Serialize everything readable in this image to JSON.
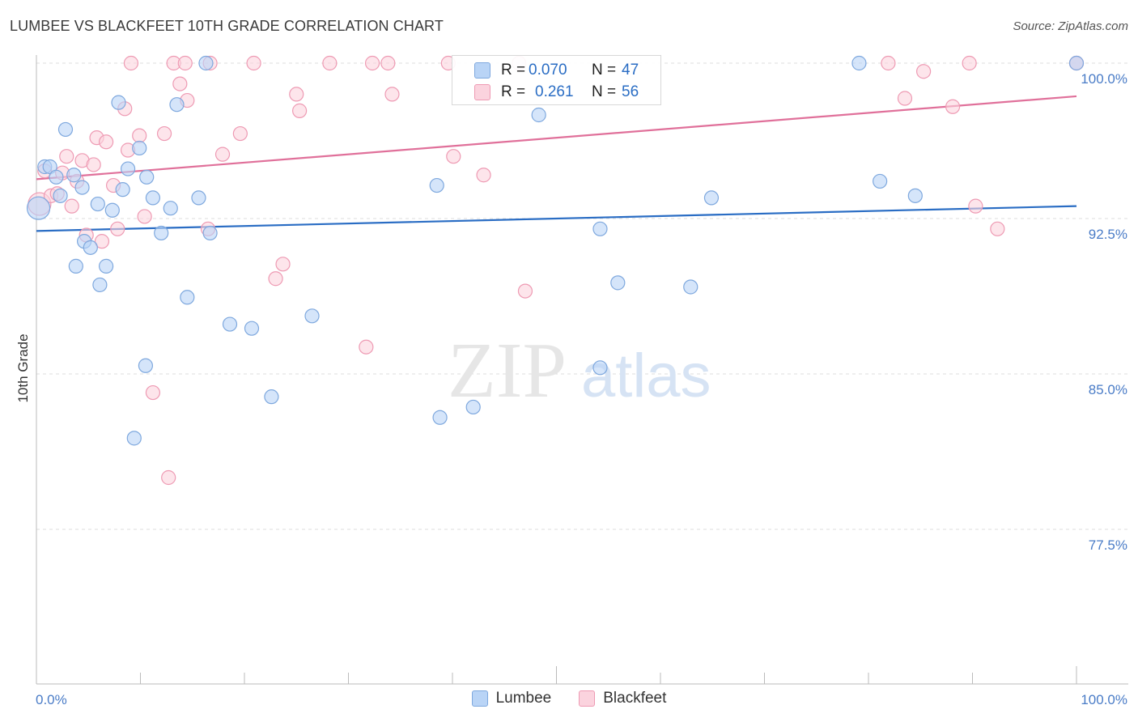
{
  "title": "LUMBEE VS BLACKFEET 10TH GRADE CORRELATION CHART",
  "source": "Source: ZipAtlas.com",
  "watermark": {
    "zip": "ZIP",
    "atlas": "atlas"
  },
  "colors": {
    "lumbee_fill": "#b9d4f6",
    "lumbee_stroke": "#7ea8de",
    "lumbee_line": "#2a6dc4",
    "blackfeet_fill": "#fbd3de",
    "blackfeet_stroke": "#ee9ab3",
    "blackfeet_line": "#e0709a",
    "tick_text": "#4a7cc7"
  },
  "stats": [
    {
      "r_label": "R = ",
      "r_value": "0.070",
      "n_label": "N = ",
      "n_value": "47"
    },
    {
      "r_label": "R = ",
      "r_value": "0.261",
      "n_label": "N = ",
      "n_value": "56"
    }
  ],
  "legend": [
    "Lumbee",
    "Blackfeet"
  ],
  "chart_data": {
    "type": "scatter",
    "title": "LUMBEE VS BLACKFEET 10TH GRADE CORRELATION CHART",
    "xlabel": "",
    "ylabel": "10th Grade",
    "xlim": [
      0,
      100
    ],
    "ylim": [
      71.0,
      101.4
    ],
    "x_tick_labels": [
      "0.0%",
      "100.0%"
    ],
    "y_ticks": [
      100.0,
      92.5,
      85.0,
      77.5
    ],
    "y_tick_labels": [
      "100.0%",
      "92.5%",
      "85.0%",
      "77.5%"
    ],
    "grid": true,
    "legend_position": "bottom",
    "series": [
      {
        "name": "Lumbee",
        "trend": {
          "x": [
            0,
            100
          ],
          "y": [
            91.9,
            93.1
          ]
        },
        "points": [
          {
            "x": 0.2,
            "y": 93.0,
            "big": true
          },
          {
            "x": 0.8,
            "y": 95.0
          },
          {
            "x": 1.3,
            "y": 95.0
          },
          {
            "x": 1.9,
            "y": 94.5
          },
          {
            "x": 2.3,
            "y": 93.6
          },
          {
            "x": 2.8,
            "y": 96.8
          },
          {
            "x": 3.6,
            "y": 94.6
          },
          {
            "x": 3.8,
            "y": 90.2
          },
          {
            "x": 4.4,
            "y": 94.0
          },
          {
            "x": 4.6,
            "y": 91.4
          },
          {
            "x": 5.2,
            "y": 91.1
          },
          {
            "x": 5.9,
            "y": 93.2
          },
          {
            "x": 6.1,
            "y": 89.3
          },
          {
            "x": 6.7,
            "y": 90.2
          },
          {
            "x": 7.3,
            "y": 92.9
          },
          {
            "x": 7.9,
            "y": 98.1
          },
          {
            "x": 8.3,
            "y": 93.9
          },
          {
            "x": 8.8,
            "y": 94.9
          },
          {
            "x": 9.4,
            "y": 81.9
          },
          {
            "x": 9.9,
            "y": 95.9
          },
          {
            "x": 10.5,
            "y": 85.4
          },
          {
            "x": 10.6,
            "y": 94.5
          },
          {
            "x": 11.2,
            "y": 93.5
          },
          {
            "x": 12.0,
            "y": 91.8
          },
          {
            "x": 12.9,
            "y": 93.0
          },
          {
            "x": 13.5,
            "y": 98.0
          },
          {
            "x": 14.5,
            "y": 88.7
          },
          {
            "x": 15.6,
            "y": 93.5
          },
          {
            "x": 16.3,
            "y": 100.0
          },
          {
            "x": 16.7,
            "y": 91.8
          },
          {
            "x": 18.6,
            "y": 87.4
          },
          {
            "x": 20.7,
            "y": 87.2
          },
          {
            "x": 22.6,
            "y": 83.9
          },
          {
            "x": 26.5,
            "y": 87.8
          },
          {
            "x": 38.5,
            "y": 94.1
          },
          {
            "x": 38.8,
            "y": 82.9
          },
          {
            "x": 42.0,
            "y": 83.4
          },
          {
            "x": 48.3,
            "y": 97.5
          },
          {
            "x": 54.2,
            "y": 92.0
          },
          {
            "x": 54.2,
            "y": 85.3
          },
          {
            "x": 55.9,
            "y": 89.4
          },
          {
            "x": 62.9,
            "y": 89.2
          },
          {
            "x": 64.9,
            "y": 93.5
          },
          {
            "x": 79.1,
            "y": 100.0
          },
          {
            "x": 81.1,
            "y": 94.3
          },
          {
            "x": 84.5,
            "y": 93.6
          },
          {
            "x": 100.0,
            "y": 100.0
          }
        ]
      },
      {
        "name": "Blackfeet",
        "trend": {
          "x": [
            0,
            100
          ],
          "y": [
            94.4,
            98.4
          ]
        },
        "points": [
          {
            "x": 0.3,
            "y": 93.2,
            "big": true
          },
          {
            "x": 0.8,
            "y": 94.8
          },
          {
            "x": 1.4,
            "y": 93.6
          },
          {
            "x": 2.0,
            "y": 93.7
          },
          {
            "x": 2.5,
            "y": 94.7
          },
          {
            "x": 2.9,
            "y": 95.5
          },
          {
            "x": 3.4,
            "y": 93.1
          },
          {
            "x": 3.9,
            "y": 94.3
          },
          {
            "x": 4.4,
            "y": 95.3
          },
          {
            "x": 4.8,
            "y": 91.7
          },
          {
            "x": 5.5,
            "y": 95.1
          },
          {
            "x": 5.8,
            "y": 96.4
          },
          {
            "x": 6.3,
            "y": 91.4
          },
          {
            "x": 6.7,
            "y": 96.2
          },
          {
            "x": 7.4,
            "y": 94.1
          },
          {
            "x": 7.8,
            "y": 92.0
          },
          {
            "x": 8.5,
            "y": 97.8
          },
          {
            "x": 8.8,
            "y": 95.8
          },
          {
            "x": 9.1,
            "y": 100.0
          },
          {
            "x": 9.9,
            "y": 96.5
          },
          {
            "x": 10.4,
            "y": 92.6
          },
          {
            "x": 11.2,
            "y": 84.1
          },
          {
            "x": 12.3,
            "y": 96.6
          },
          {
            "x": 12.7,
            "y": 80.0
          },
          {
            "x": 13.2,
            "y": 100.0
          },
          {
            "x": 13.8,
            "y": 99.0
          },
          {
            "x": 14.3,
            "y": 100.0
          },
          {
            "x": 14.5,
            "y": 98.2
          },
          {
            "x": 16.5,
            "y": 92.0
          },
          {
            "x": 16.7,
            "y": 100.0
          },
          {
            "x": 17.9,
            "y": 95.6
          },
          {
            "x": 19.6,
            "y": 96.6
          },
          {
            "x": 20.9,
            "y": 100.0
          },
          {
            "x": 23.0,
            "y": 89.6
          },
          {
            "x": 23.7,
            "y": 90.3
          },
          {
            "x": 25.0,
            "y": 98.5
          },
          {
            "x": 25.3,
            "y": 97.7
          },
          {
            "x": 28.2,
            "y": 100.0
          },
          {
            "x": 31.7,
            "y": 86.3
          },
          {
            "x": 32.3,
            "y": 100.0
          },
          {
            "x": 33.8,
            "y": 100.0
          },
          {
            "x": 34.2,
            "y": 98.5
          },
          {
            "x": 39.6,
            "y": 100.0
          },
          {
            "x": 40.1,
            "y": 95.5
          },
          {
            "x": 43.0,
            "y": 94.6
          },
          {
            "x": 46.4,
            "y": 100.0
          },
          {
            "x": 47.0,
            "y": 89.0
          },
          {
            "x": 81.9,
            "y": 100.0
          },
          {
            "x": 83.5,
            "y": 98.3
          },
          {
            "x": 85.3,
            "y": 99.6
          },
          {
            "x": 88.1,
            "y": 97.9
          },
          {
            "x": 89.7,
            "y": 100.0
          },
          {
            "x": 90.3,
            "y": 93.1
          },
          {
            "x": 92.4,
            "y": 92.0
          },
          {
            "x": 100.0,
            "y": 100.0
          },
          {
            "x": 100.0,
            "y": 100.0
          }
        ]
      }
    ]
  }
}
